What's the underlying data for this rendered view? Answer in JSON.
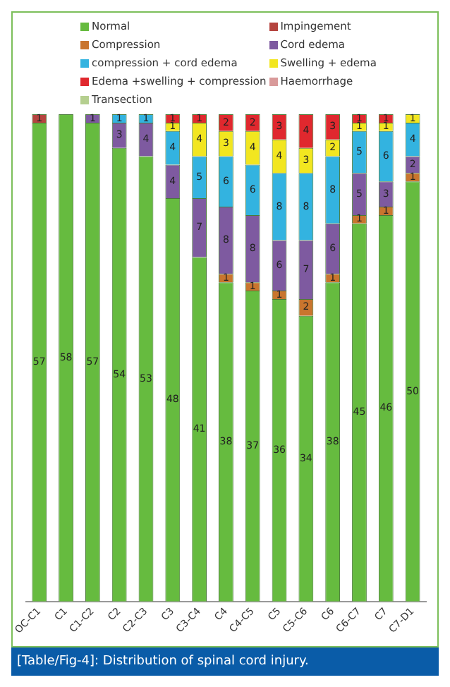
{
  "chart_data": {
    "type": "bar",
    "stacked": true,
    "legend": "top",
    "grid": false,
    "categories": [
      "OC-C1",
      "C1",
      "C1-C2",
      "C2",
      "C2-C3",
      "C3",
      "C3-C4",
      "C4",
      "C4-C5",
      "C5",
      "C5-C6",
      "C6",
      "C6-C7",
      "C7",
      "C7-D1"
    ],
    "series": [
      {
        "name": "Normal",
        "color": "#66bb3f",
        "values": [
          57,
          58,
          57,
          54,
          53,
          48,
          41,
          38,
          37,
          36,
          34,
          38,
          45,
          46,
          50
        ],
        "value_labels": [
          "57",
          "58",
          "57",
          "54",
          "53",
          "48",
          "41",
          "38",
          "37",
          "36",
          "34",
          "38",
          "45",
          "46",
          "50"
        ]
      },
      {
        "name": "Impingement",
        "color": "#b5443f",
        "values": [
          1,
          0,
          0,
          0,
          0,
          0,
          0,
          0,
          0,
          0,
          0,
          0,
          0,
          0,
          0
        ],
        "value_labels": [
          "1",
          null,
          null,
          null,
          null,
          null,
          null,
          null,
          null,
          null,
          null,
          null,
          null,
          null,
          null
        ]
      },
      {
        "name": "Compression",
        "color": "#c9752e",
        "values": [
          0,
          0,
          0,
          0,
          0,
          0,
          0,
          1,
          1,
          1,
          2,
          1,
          1,
          1,
          1
        ],
        "value_labels": [
          null,
          null,
          null,
          null,
          null,
          null,
          null,
          "1",
          "1",
          "1",
          "2",
          "1",
          "1",
          "1",
          "1"
        ]
      },
      {
        "name": "Cord edema",
        "color": "#7e5aa0",
        "values": [
          0,
          0,
          1,
          3,
          4,
          4,
          7,
          8,
          8,
          6,
          7,
          6,
          5,
          3,
          2
        ],
        "value_labels": [
          null,
          null,
          "1",
          "3",
          "4",
          "4",
          "7",
          "8",
          "8",
          "6",
          "7",
          "6",
          "5",
          "3",
          "2"
        ]
      },
      {
        "name": "compression + cord edema",
        "color": "#33b3e0",
        "values": [
          0,
          0,
          0,
          1,
          1,
          4,
          5,
          6,
          6,
          8,
          8,
          8,
          5,
          6,
          4
        ],
        "value_labels": [
          null,
          null,
          null,
          "1",
          "1",
          "4",
          "5",
          "6",
          "6",
          "8",
          "8",
          "8",
          "5",
          "6",
          "4"
        ]
      },
      {
        "name": "Swelling + edema",
        "color": "#f2e620",
        "values": [
          0,
          0,
          0,
          0,
          0,
          1,
          4,
          3,
          4,
          4,
          3,
          2,
          1,
          1,
          1
        ],
        "value_labels": [
          null,
          null,
          null,
          null,
          null,
          "1",
          "4",
          "3",
          "4",
          "4",
          "3",
          "2",
          "1",
          "1",
          "1"
        ]
      },
      {
        "name": "Edema +swelling + compression",
        "color": "#e0282e",
        "values": [
          0,
          0,
          0,
          0,
          0,
          1,
          1,
          2,
          2,
          3,
          4,
          3,
          1,
          1,
          0
        ],
        "value_labels": [
          null,
          null,
          null,
          null,
          null,
          "1",
          "1",
          "2",
          "2",
          "3",
          "4",
          "3",
          "1",
          "1",
          null
        ]
      },
      {
        "name": "Haemorrhage",
        "color": "#d99a9a",
        "values": [
          0,
          0,
          0,
          0,
          0,
          0,
          0,
          0,
          0,
          0,
          0,
          0,
          0,
          0,
          0
        ]
      },
      {
        "name": "Transection",
        "color": "#b5cf8f",
        "values": [
          0,
          0,
          0,
          0,
          0,
          0,
          0,
          0,
          0,
          0,
          0,
          0,
          0,
          0,
          0
        ]
      }
    ],
    "annotations": [
      "[Table/Fig-4]: Distribution of spinal cord injury."
    ]
  }
}
